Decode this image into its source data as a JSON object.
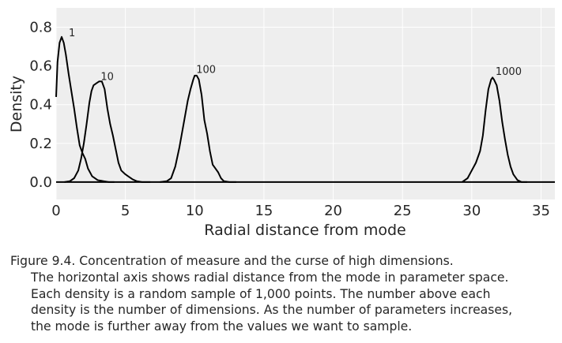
{
  "chart_data": {
    "type": "line",
    "xlabel": "Radial distance from mode",
    "ylabel": "Density",
    "xlim": [
      0,
      36
    ],
    "ylim": [
      -0.09,
      0.9
    ],
    "xticks": [
      "0",
      "5",
      "10",
      "15",
      "20",
      "25",
      "30",
      "35"
    ],
    "yticks": [
      "0.0",
      "0.2",
      "0.4",
      "0.6",
      "0.8"
    ],
    "grid": true,
    "background": "#eeeeee",
    "line_color": "#000000",
    "series": [
      {
        "name": "1",
        "x": [
          0.0,
          0.1,
          0.25,
          0.4,
          0.55,
          0.7,
          0.9,
          1.1,
          1.3,
          1.5,
          1.7,
          1.9,
          2.1,
          2.3,
          2.6,
          3.0,
          3.4,
          3.8,
          4.2
        ],
        "y": [
          0.44,
          0.62,
          0.72,
          0.75,
          0.72,
          0.66,
          0.56,
          0.47,
          0.38,
          0.28,
          0.19,
          0.15,
          0.12,
          0.07,
          0.03,
          0.01,
          0.005,
          0.0,
          0.0
        ]
      },
      {
        "name": "10",
        "x": [
          0.6,
          1.0,
          1.3,
          1.6,
          1.8,
          2.0,
          2.2,
          2.4,
          2.55,
          2.7,
          2.9,
          3.1,
          3.3,
          3.5,
          3.7,
          3.9,
          4.1,
          4.3,
          4.5,
          4.7,
          5.0,
          5.2,
          5.5,
          5.8,
          6.2,
          6.8
        ],
        "y": [
          0.0,
          0.005,
          0.02,
          0.06,
          0.12,
          0.2,
          0.3,
          0.41,
          0.47,
          0.5,
          0.51,
          0.52,
          0.52,
          0.48,
          0.38,
          0.3,
          0.24,
          0.17,
          0.1,
          0.06,
          0.04,
          0.03,
          0.015,
          0.005,
          0.0,
          0.0
        ]
      },
      {
        "name": "100",
        "x": [
          7.5,
          8.0,
          8.3,
          8.6,
          8.9,
          9.2,
          9.5,
          9.7,
          9.9,
          10.0,
          10.15,
          10.3,
          10.5,
          10.7,
          10.9,
          11.1,
          11.3,
          11.5,
          11.7,
          11.9,
          12.1,
          12.5,
          13.0
        ],
        "y": [
          0.0,
          0.005,
          0.02,
          0.08,
          0.18,
          0.3,
          0.42,
          0.48,
          0.53,
          0.55,
          0.55,
          0.53,
          0.45,
          0.32,
          0.25,
          0.16,
          0.09,
          0.07,
          0.05,
          0.02,
          0.005,
          0.0,
          0.0
        ]
      },
      {
        "name": "1000",
        "x": [
          29.3,
          29.7,
          30.0,
          30.3,
          30.6,
          30.8,
          31.0,
          31.2,
          31.4,
          31.5,
          31.6,
          31.8,
          32.0,
          32.2,
          32.4,
          32.6,
          32.8,
          33.0,
          33.3,
          33.6,
          34.0
        ],
        "y": [
          0.0,
          0.02,
          0.06,
          0.1,
          0.16,
          0.24,
          0.37,
          0.48,
          0.53,
          0.54,
          0.53,
          0.5,
          0.42,
          0.31,
          0.22,
          0.14,
          0.08,
          0.04,
          0.01,
          0.0,
          0.0
        ]
      }
    ],
    "annotations": [
      {
        "text": "1",
        "x": 0.8,
        "y": 0.745
      },
      {
        "text": "10",
        "x": 3.1,
        "y": 0.52
      },
      {
        "text": "100",
        "x": 10.0,
        "y": 0.555
      },
      {
        "text": "1000",
        "x": 31.6,
        "y": 0.545
      }
    ]
  },
  "caption": {
    "line1": "Figure 9.4. Concentration of measure and the curse of high dimensions.",
    "line2": "The horizontal axis shows radial distance from the mode in parameter space.",
    "line3": "Each density is a random sample of 1,000 points. The number above each",
    "line4": "density is the number of dimensions. As the number of parameters increases,",
    "line5": "the mode is further away from the values we want to sample."
  }
}
